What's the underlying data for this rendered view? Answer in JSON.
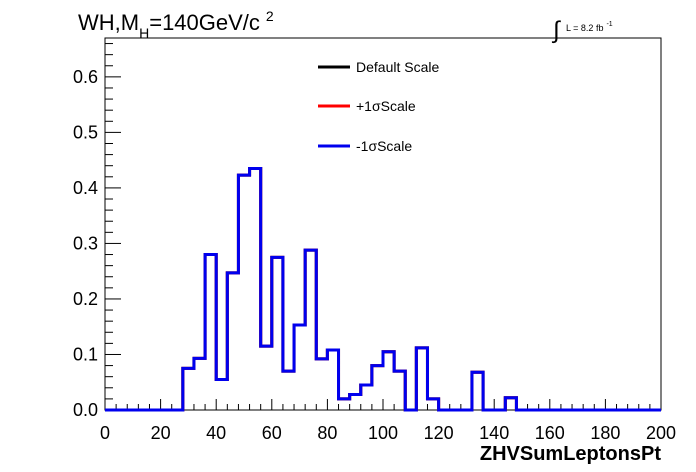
{
  "chart_data": {
    "type": "line",
    "title": "WH,M",
    "title_sub": "H",
    "title_rest": "=140GeV/c",
    "title_sup": "2",
    "lumi_integral": "∫",
    "lumi_label": "L = 8.2 fb",
    "lumi_sup": "-1",
    "xlabel": "ZHVSumLeptonsPt",
    "ylabel": "",
    "xlim": [
      0,
      200
    ],
    "ylim": [
      0,
      0.67
    ],
    "xticks": [
      "0",
      "20",
      "40",
      "60",
      "80",
      "100",
      "120",
      "140",
      "160",
      "180",
      "200"
    ],
    "yticks": [
      "0.0",
      "0.1",
      "0.2",
      "0.3",
      "0.4",
      "0.5",
      "0.6"
    ],
    "grid": false,
    "legend_position": "top-center",
    "bin_width": 4,
    "x": [
      0,
      4,
      8,
      12,
      16,
      20,
      24,
      28,
      32,
      36,
      40,
      44,
      48,
      52,
      56,
      60,
      64,
      68,
      72,
      76,
      80,
      84,
      88,
      92,
      96,
      100,
      104,
      108,
      112,
      116,
      120,
      124,
      128,
      132,
      136,
      140,
      144,
      148,
      152,
      156,
      160,
      164,
      168,
      172,
      176,
      180,
      184,
      188,
      192,
      196
    ],
    "series": [
      {
        "name": "Default Scale",
        "color": "#000000",
        "values": [
          0,
          0,
          0,
          0,
          0,
          0,
          0,
          0.075,
          0.093,
          0.28,
          0.055,
          0.247,
          0.423,
          0.435,
          0.115,
          0.275,
          0.07,
          0.153,
          0.288,
          0.092,
          0.108,
          0.02,
          0.028,
          0.045,
          0.08,
          0.105,
          0.07,
          0,
          0.112,
          0.02,
          0,
          0,
          0,
          0.068,
          0,
          0,
          0.022,
          0,
          0,
          0,
          0,
          0,
          0,
          0,
          0,
          0,
          0,
          0,
          0,
          0
        ]
      },
      {
        "name": "+1σScale",
        "color": "#ff0000",
        "values": [
          0,
          0,
          0,
          0,
          0,
          0,
          0,
          0.075,
          0.093,
          0.28,
          0.055,
          0.247,
          0.423,
          0.435,
          0.115,
          0.275,
          0.07,
          0.153,
          0.288,
          0.092,
          0.108,
          0.02,
          0.028,
          0.045,
          0.08,
          0.105,
          0.07,
          0,
          0.112,
          0.02,
          0,
          0,
          0,
          0.068,
          0,
          0,
          0.022,
          0,
          0,
          0,
          0,
          0,
          0,
          0,
          0,
          0,
          0,
          0,
          0,
          0
        ]
      },
      {
        "name": "-1σScale",
        "color": "#0000ee",
        "values": [
          0,
          0,
          0,
          0,
          0,
          0,
          0,
          0.075,
          0.093,
          0.28,
          0.055,
          0.247,
          0.423,
          0.435,
          0.115,
          0.275,
          0.07,
          0.153,
          0.288,
          0.092,
          0.108,
          0.02,
          0.028,
          0.045,
          0.08,
          0.105,
          0.07,
          0,
          0.112,
          0.02,
          0,
          0,
          0,
          0.068,
          0,
          0,
          0.022,
          0,
          0,
          0,
          0,
          0,
          0,
          0,
          0,
          0,
          0,
          0,
          0,
          0
        ]
      }
    ]
  }
}
